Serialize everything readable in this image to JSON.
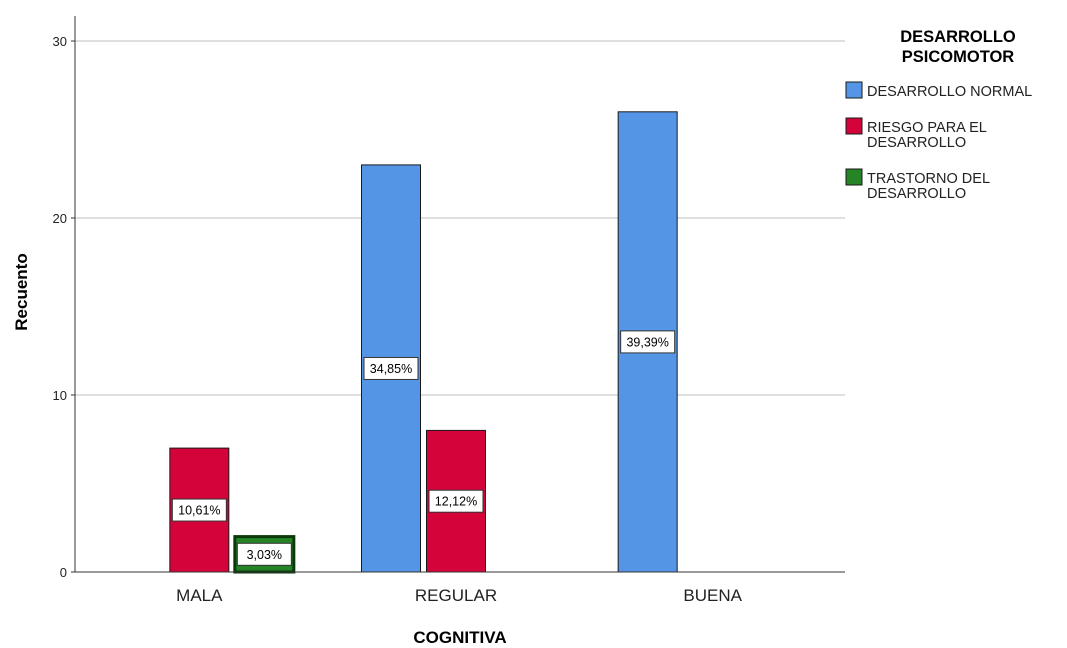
{
  "chart_data": {
    "type": "bar",
    "categories": [
      "MALA",
      "REGULAR",
      "BUENA"
    ],
    "xlabel": "COGNITIVA",
    "ylabel": "Recuento",
    "ylim": [
      0,
      30
    ],
    "yticks": [
      0,
      10,
      20,
      30
    ],
    "grid": true,
    "legend": {
      "title": "DESARROLLO PSICOMOTOR",
      "placement": "right"
    },
    "series": [
      {
        "name": "DESARROLLO NORMAL",
        "color": "#5496e5",
        "values": [
          0,
          23,
          26
        ],
        "labels": [
          "",
          "34,85%",
          "39,39%"
        ]
      },
      {
        "name": "RIESGO PARA EL DESARROLLO",
        "color": "#d4043a",
        "values": [
          7,
          8,
          0
        ],
        "labels": [
          "10,61%",
          "12,12%",
          ""
        ]
      },
      {
        "name": "TRASTORNO DEL DESARROLLO",
        "color": "#258426",
        "values": [
          2,
          0,
          0
        ],
        "labels": [
          "3,03%",
          "",
          ""
        ]
      }
    ]
  }
}
